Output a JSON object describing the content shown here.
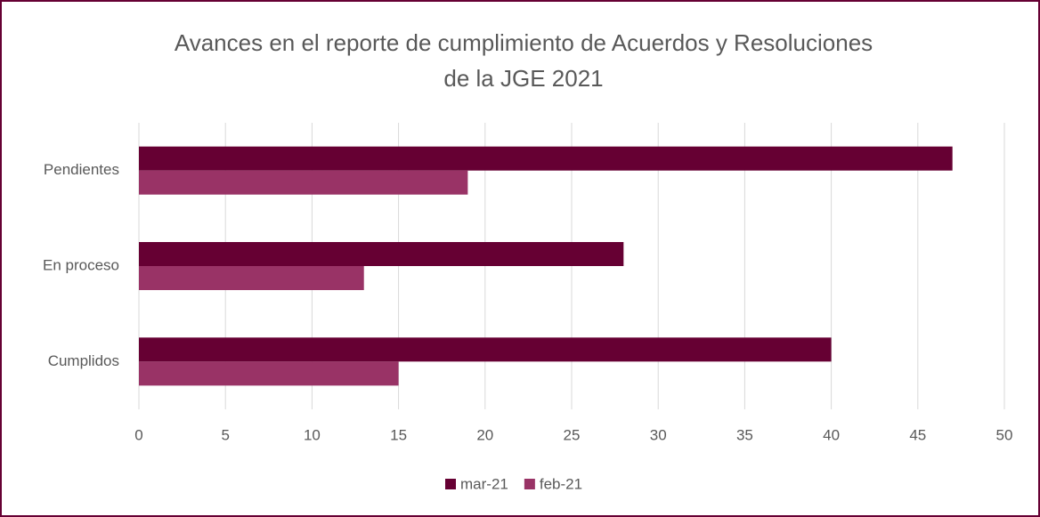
{
  "chart_data": {
    "type": "barh",
    "title": "Avances en el reporte de cumplimiento de Acuerdos y Resoluciones",
    "subtitle": "de la JGE 2021",
    "categories": [
      "Pendientes",
      "En proceso",
      "Cumplidos"
    ],
    "series": [
      {
        "name": "mar-21",
        "color": "#660033",
        "values": [
          47,
          28,
          40
        ]
      },
      {
        "name": "feb-21",
        "color": "#993366",
        "values": [
          19,
          13,
          15
        ]
      }
    ],
    "xlim": [
      0,
      50
    ],
    "xticks": [
      0,
      5,
      10,
      15,
      20,
      25,
      30,
      35,
      40,
      45,
      50
    ],
    "grid": true,
    "legend": "bottom"
  }
}
